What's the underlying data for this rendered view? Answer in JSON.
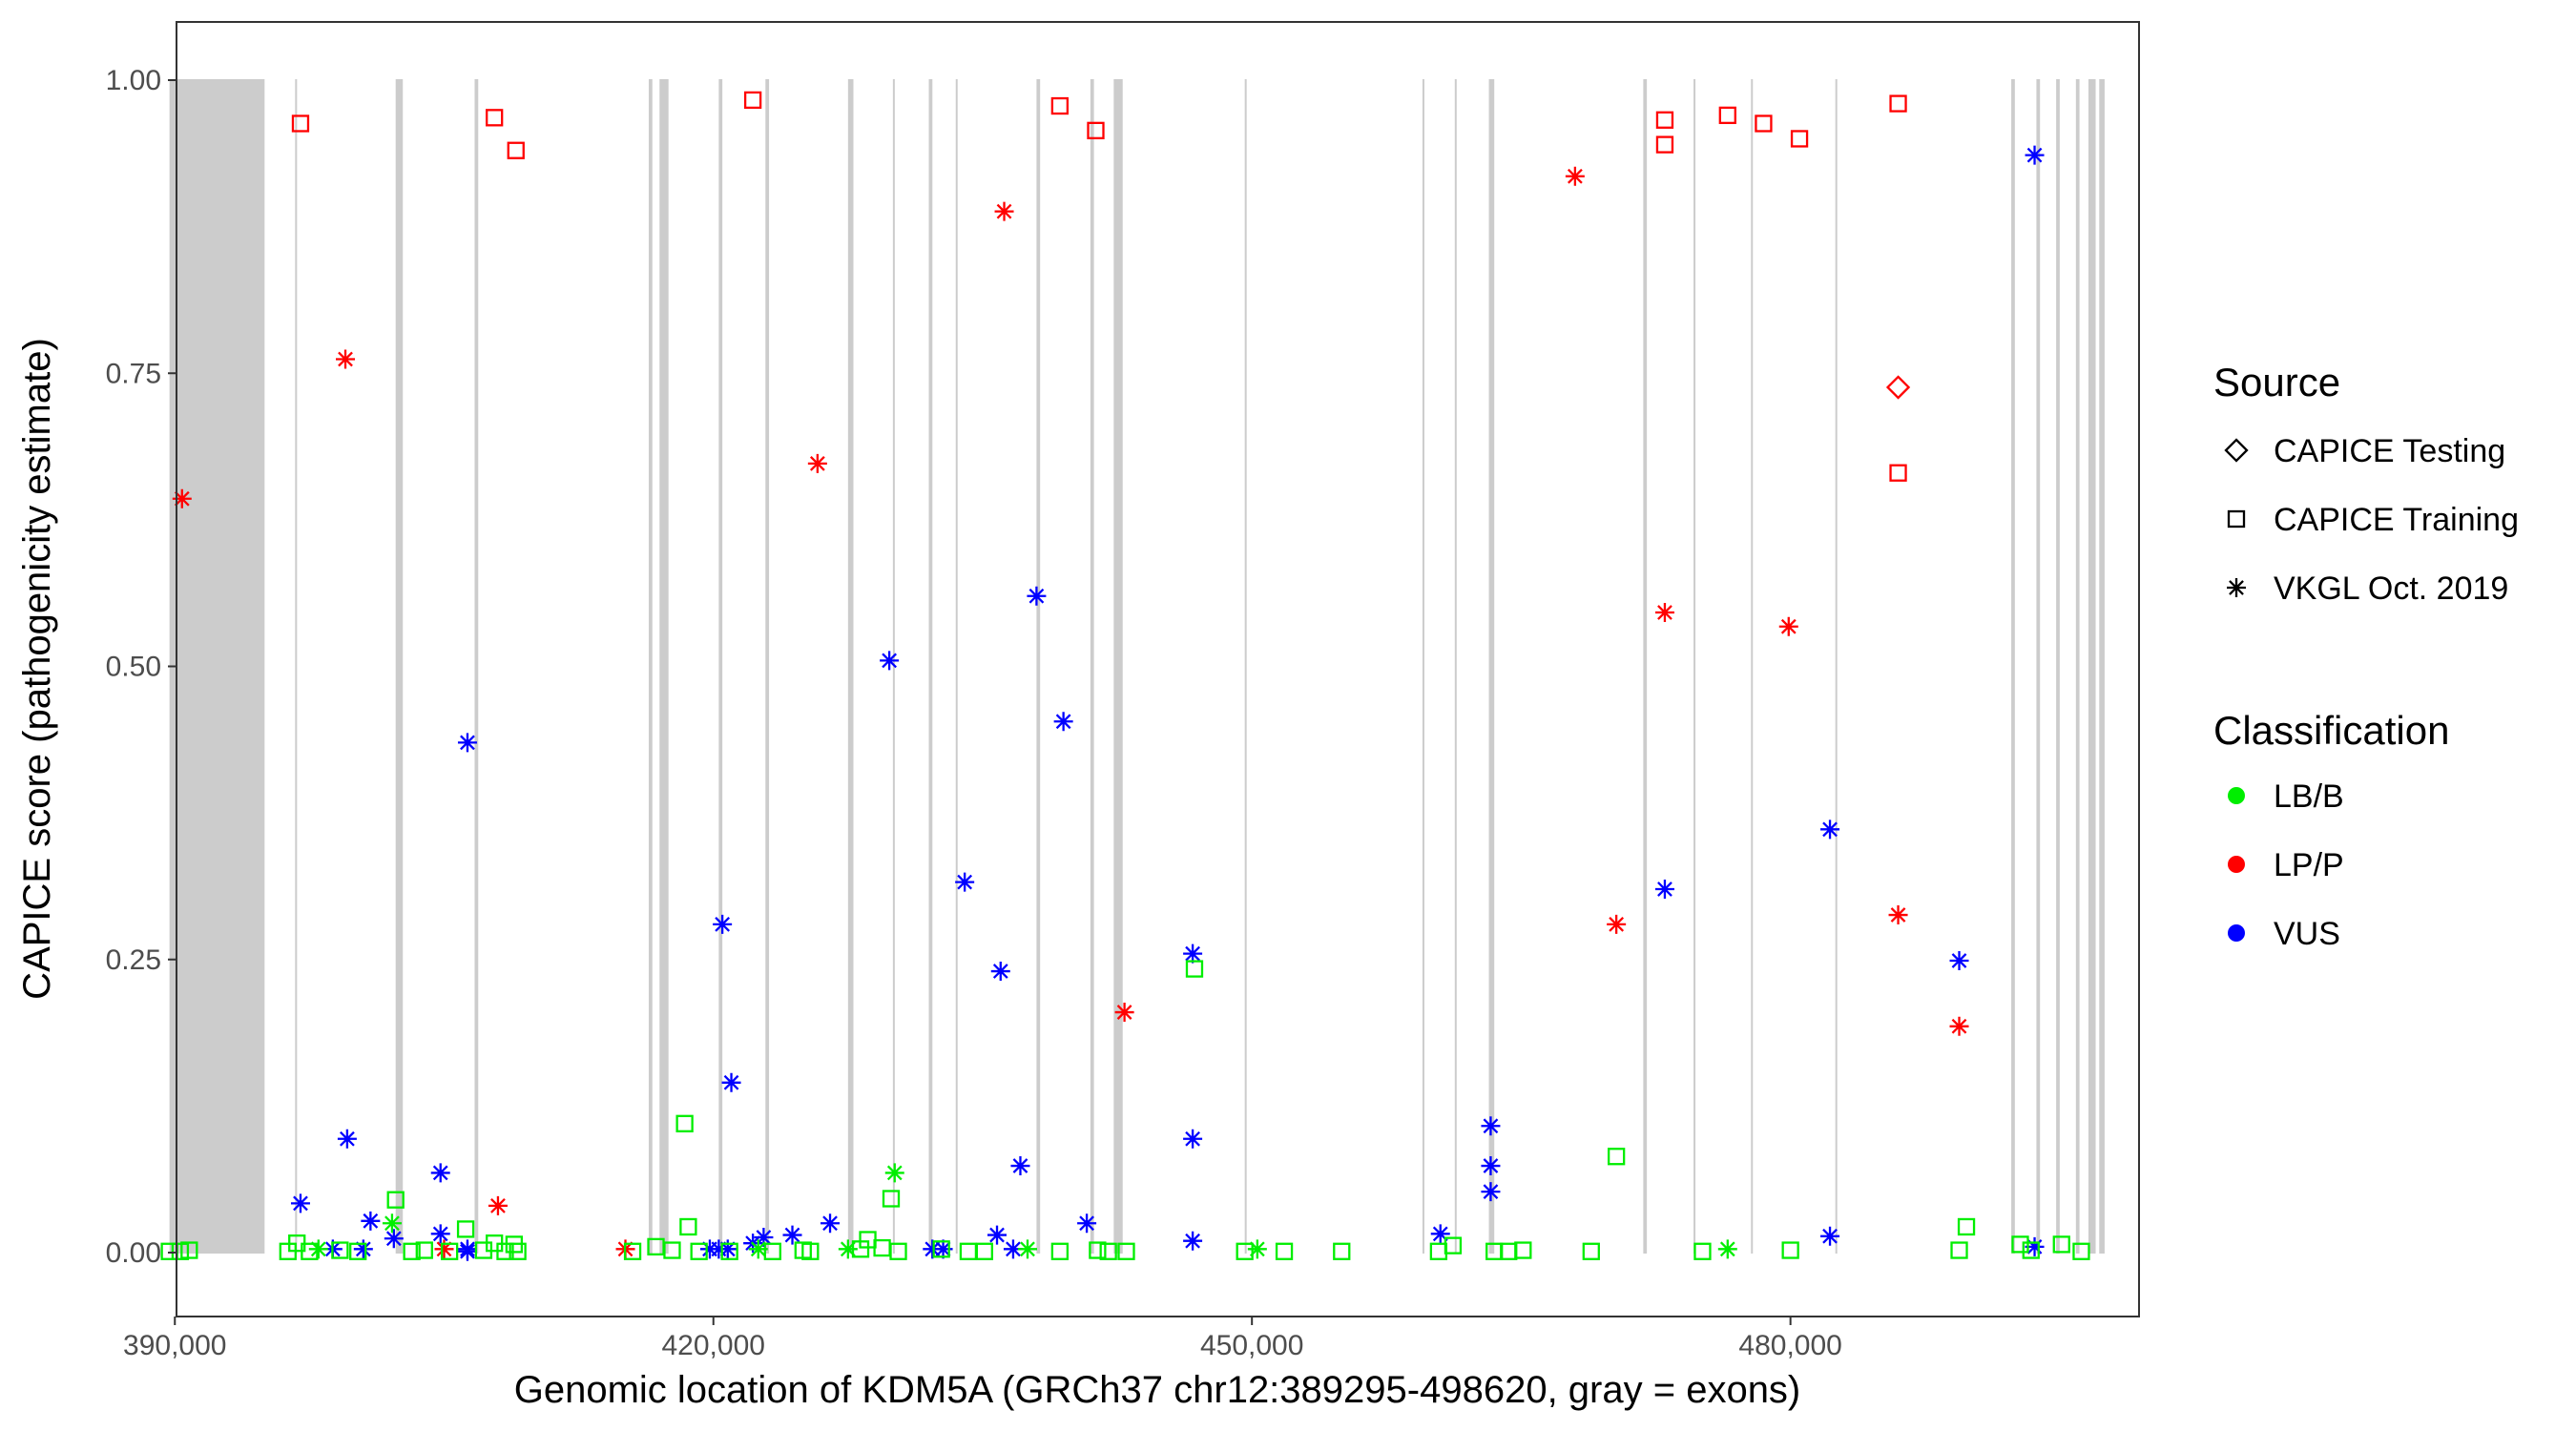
{
  "chart_data": {
    "type": "scatter",
    "title": "",
    "xlabel": "Genomic location of KDM5A (GRCh37 chr12:389295-498620, gray = exons)",
    "ylabel": "CAPICE score (pathogenicity estimate)",
    "xlim": [
      389295,
      498620
    ],
    "ylim": [
      0,
      1
    ],
    "x_ticks": [
      390000,
      420000,
      450000,
      480000
    ],
    "x_tick_labels": [
      "390,000",
      "420,000",
      "450,000",
      "480,000"
    ],
    "y_ticks": [
      0,
      0.25,
      0.5,
      0.75,
      1.0
    ],
    "y_tick_labels": [
      "0.00",
      "0.25",
      "0.50",
      "0.75",
      "1.00"
    ],
    "grid": false,
    "background_bands": "exons (gray vertical bands)",
    "exons": [
      [
        389700,
        395000
      ],
      [
        396700,
        396800
      ],
      [
        402300,
        402700
      ],
      [
        406700,
        406900
      ],
      [
        416400,
        416600
      ],
      [
        417000,
        417500
      ],
      [
        420300,
        420500
      ],
      [
        422900,
        423100
      ],
      [
        427500,
        427800
      ],
      [
        430000,
        430100
      ],
      [
        432000,
        432200
      ],
      [
        433500,
        433600
      ],
      [
        438000,
        438200
      ],
      [
        441000,
        441200
      ],
      [
        442300,
        442800
      ],
      [
        449600,
        449700
      ],
      [
        459500,
        459600
      ],
      [
        461300,
        461400
      ],
      [
        463200,
        463500
      ],
      [
        471800,
        472000
      ],
      [
        474600,
        474700
      ],
      [
        477800,
        477900
      ],
      [
        482500,
        482600
      ],
      [
        492300,
        492500
      ],
      [
        493700,
        493900
      ],
      [
        494800,
        495000
      ],
      [
        495900,
        496100
      ],
      [
        496600,
        497000
      ],
      [
        497200,
        497500
      ]
    ],
    "legend": {
      "placement": "right",
      "source_title": "Source",
      "source_items": [
        {
          "label": "CAPICE Testing",
          "shape": "diamond"
        },
        {
          "label": "CAPICE Training",
          "shape": "square"
        },
        {
          "label": "VKGL Oct. 2019",
          "shape": "asterisk"
        }
      ],
      "class_title": "Classification",
      "class_items": [
        {
          "label": "LB/B",
          "color": "#00ee00"
        },
        {
          "label": "LP/P",
          "color": "#ff0000"
        },
        {
          "label": "VUS",
          "color": "#0000ff"
        }
      ]
    },
    "series": [
      {
        "source": "CAPICE Training",
        "classification": "LP/P",
        "points": [
          [
            397000,
            0.963
          ],
          [
            407800,
            0.968
          ],
          [
            409000,
            0.94
          ],
          [
            422200,
            0.983
          ],
          [
            439300,
            0.978
          ],
          [
            441300,
            0.957
          ],
          [
            473000,
            0.966
          ],
          [
            473000,
            0.945
          ],
          [
            476500,
            0.97
          ],
          [
            478500,
            0.963
          ],
          [
            480500,
            0.95
          ],
          [
            486000,
            0.98
          ],
          [
            486000,
            0.665
          ]
        ]
      },
      {
        "source": "CAPICE Testing",
        "classification": "LP/P",
        "points": [
          [
            486000,
            0.738
          ]
        ]
      },
      {
        "source": "VKGL Oct. 2019",
        "classification": "LP/P",
        "points": [
          [
            390400,
            0.643
          ],
          [
            399500,
            0.762
          ],
          [
            405000,
            0.003
          ],
          [
            408000,
            0.04
          ],
          [
            415100,
            0.003
          ],
          [
            425800,
            0.673
          ],
          [
            436200,
            0.888
          ],
          [
            442900,
            0.205
          ],
          [
            468000,
            0.918
          ],
          [
            470300,
            0.28
          ],
          [
            473000,
            0.546
          ],
          [
            479900,
            0.534
          ],
          [
            486000,
            0.288
          ],
          [
            489400,
            0.193
          ]
        ]
      },
      {
        "source": "VKGL Oct. 2019",
        "classification": "VUS",
        "points": [
          [
            397000,
            0.042
          ],
          [
            398800,
            0.003
          ],
          [
            399600,
            0.097
          ],
          [
            400500,
            0.003
          ],
          [
            400900,
            0.027
          ],
          [
            402200,
            0.012
          ],
          [
            404800,
            0.068
          ],
          [
            404800,
            0.016
          ],
          [
            406300,
            0.435
          ],
          [
            406300,
            0.003
          ],
          [
            406300,
            0.001
          ],
          [
            419800,
            0.003
          ],
          [
            420300,
            0.003
          ],
          [
            420500,
            0.28
          ],
          [
            420800,
            0.003
          ],
          [
            421000,
            0.145
          ],
          [
            422200,
            0.008
          ],
          [
            422800,
            0.013
          ],
          [
            424400,
            0.015
          ],
          [
            426500,
            0.025
          ],
          [
            429800,
            0.505
          ],
          [
            432200,
            0.003
          ],
          [
            432800,
            0.003
          ],
          [
            434000,
            0.316
          ],
          [
            435800,
            0.015
          ],
          [
            436000,
            0.24
          ],
          [
            436700,
            0.003
          ],
          [
            437100,
            0.074
          ],
          [
            438000,
            0.56
          ],
          [
            439500,
            0.453
          ],
          [
            440800,
            0.025
          ],
          [
            446700,
            0.255
          ],
          [
            446700,
            0.097
          ],
          [
            446700,
            0.01
          ],
          [
            460500,
            0.016
          ],
          [
            463300,
            0.108
          ],
          [
            463300,
            0.074
          ],
          [
            463300,
            0.052
          ],
          [
            473000,
            0.31
          ],
          [
            482200,
            0.361
          ],
          [
            482200,
            0.014
          ],
          [
            489400,
            0.249
          ],
          [
            493600,
            0.936
          ],
          [
            493600,
            0.005
          ]
        ]
      },
      {
        "source": "VKGL Oct. 2019",
        "classification": "LB/B",
        "points": [
          [
            398000,
            0.003
          ],
          [
            402100,
            0.025
          ],
          [
            422500,
            0.003
          ],
          [
            427500,
            0.003
          ],
          [
            430100,
            0.068
          ],
          [
            437500,
            0.003
          ],
          [
            450300,
            0.003
          ],
          [
            476500,
            0.003
          ]
        ]
      },
      {
        "source": "CAPICE Training",
        "classification": "LB/B",
        "points": [
          [
            389700,
            0.001
          ],
          [
            390300,
            0.001
          ],
          [
            390800,
            0.002
          ],
          [
            396300,
            0.001
          ],
          [
            396800,
            0.008
          ],
          [
            397500,
            0.001
          ],
          [
            399200,
            0.002
          ],
          [
            400200,
            0.001
          ],
          [
            402300,
            0.045
          ],
          [
            403200,
            0.001
          ],
          [
            403900,
            0.002
          ],
          [
            405300,
            0.001
          ],
          [
            406200,
            0.02
          ],
          [
            407200,
            0.002
          ],
          [
            407800,
            0.008
          ],
          [
            408400,
            0.001
          ],
          [
            408900,
            0.007
          ],
          [
            409100,
            0.001
          ],
          [
            415500,
            0.001
          ],
          [
            416800,
            0.005
          ],
          [
            417700,
            0.002
          ],
          [
            418400,
            0.11
          ],
          [
            418600,
            0.022
          ],
          [
            419200,
            0.001
          ],
          [
            420900,
            0.001
          ],
          [
            423300,
            0.001
          ],
          [
            425000,
            0.002
          ],
          [
            425400,
            0.001
          ],
          [
            428200,
            0.003
          ],
          [
            428600,
            0.011
          ],
          [
            429400,
            0.004
          ],
          [
            429900,
            0.046
          ],
          [
            430300,
            0.001
          ],
          [
            432700,
            0.003
          ],
          [
            434200,
            0.001
          ],
          [
            435100,
            0.001
          ],
          [
            439300,
            0.001
          ],
          [
            441400,
            0.002
          ],
          [
            442000,
            0.001
          ],
          [
            443000,
            0.001
          ],
          [
            446800,
            0.242
          ],
          [
            449600,
            0.001
          ],
          [
            451800,
            0.001
          ],
          [
            455000,
            0.001
          ],
          [
            460400,
            0.001
          ],
          [
            461200,
            0.006
          ],
          [
            463500,
            0.001
          ],
          [
            464300,
            0.001
          ],
          [
            465100,
            0.002
          ],
          [
            468900,
            0.001
          ],
          [
            470300,
            0.082
          ],
          [
            475100,
            0.001
          ],
          [
            480000,
            0.002
          ],
          [
            489400,
            0.002
          ],
          [
            489800,
            0.022
          ],
          [
            492800,
            0.007
          ],
          [
            493400,
            0.002
          ],
          [
            495100,
            0.007
          ],
          [
            496200,
            0.001
          ]
        ]
      }
    ]
  }
}
